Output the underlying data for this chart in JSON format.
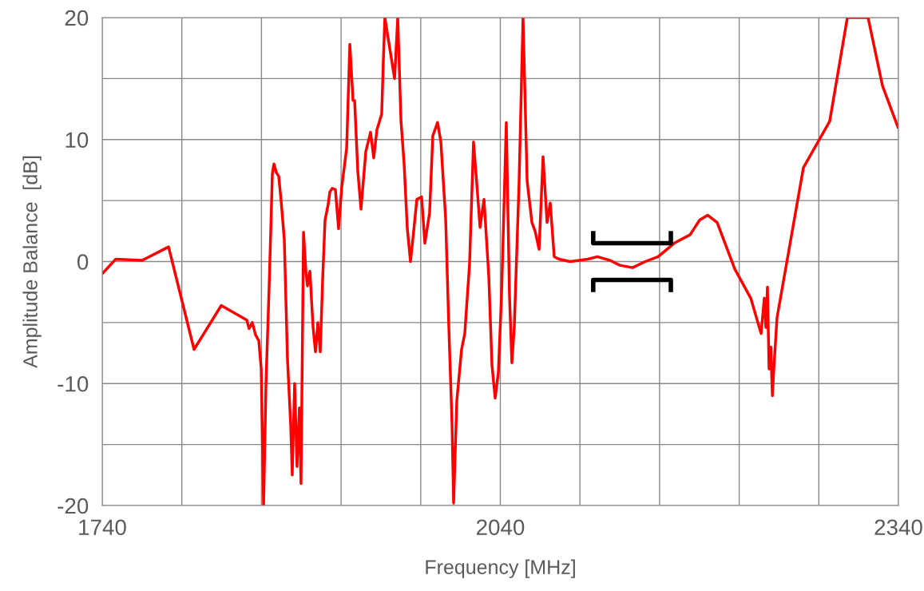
{
  "chart_data": {
    "type": "line",
    "xlabel": "Frequency [MHz]",
    "ylabel": "Amplitude Balance  [dB]",
    "xlim": [
      1740,
      2340
    ],
    "ylim": [
      -20,
      20
    ],
    "xticks": [
      1740,
      {
        "value": 1800,
        "label": null
      },
      {
        "value": 1860,
        "label": null
      },
      {
        "value": 1920,
        "label": null
      },
      {
        "value": 1980,
        "label": null
      },
      2040,
      {
        "value": 2100,
        "label": null
      },
      {
        "value": 2160,
        "label": null
      },
      {
        "value": 2220,
        "label": null
      },
      {
        "value": 2280,
        "label": null
      },
      2340
    ],
    "yticks": [
      -20,
      {
        "value": -15,
        "label": null
      },
      -10,
      {
        "value": -5,
        "label": null
      },
      0,
      {
        "value": 5,
        "label": null
      },
      10,
      {
        "value": 15,
        "label": null
      },
      20
    ],
    "grid": true,
    "legend": false,
    "marker": "none",
    "line_style": "solid",
    "series": [
      {
        "color": "#ff0000",
        "x": [
          1740,
          1750.2,
          1770.1,
          1790.0,
          1809.2,
          1829.7,
          1848.9,
          1850.7,
          1853.1,
          1855.5,
          1858.0,
          1859.8,
          1861.6,
          1863.4,
          1865.8,
          1867.0,
          1868.2,
          1869.4,
          1871.2,
          1873.0,
          1874.8,
          1877.2,
          1879.6,
          1882.0,
          1883.2,
          1885.0,
          1886.8,
          1888.6,
          1889.8,
          1891.7,
          1893.5,
          1894.7,
          1896.5,
          1898.9,
          1900.7,
          1902.5,
          1904.3,
          1906.1,
          1907.9,
          1910.3,
          1911.5,
          1913.3,
          1915.7,
          1918.1,
          1920.5,
          1924.2,
          1926.6,
          1929.0,
          1930.2,
          1932.6,
          1935.0,
          1938.6,
          1942.2,
          1944.6,
          1947.0,
          1950.6,
          1951.8,
          1953.0,
          1960.3,
          1962.7,
          1965.1,
          1967.5,
          1969.9,
          1972.3,
          1974.7,
          1977.1,
          1980.7,
          1983.1,
          1986.7,
          1989.1,
          1992.7,
          1995.2,
          1998.8,
          2001.2,
          2003.6,
          2004.8,
          2007.2,
          2010.8,
          2013.2,
          2016.8,
          2019.8,
          2022.8,
          2024.7,
          2027.7,
          2031.3,
          2033.7,
          2036.1,
          2038.5,
          2040.9,
          2044.5,
          2046.9,
          2048.7,
          2050.5,
          2054.1,
          2057.1,
          2060.2,
          2063.8,
          2066.2,
          2069.2,
          2072.2,
          2075.2,
          2077.6,
          2080.6,
          2084.2,
          2092.6,
          2105.9,
          2113.1,
          2122.7,
          2130.0,
          2139.6,
          2149.2,
          2158.9,
          2171.0,
          2183.0,
          2190.2,
          2196.2,
          2203.4,
          2216.6,
          2228.7,
          2236.5,
          2238.9,
          2240.1,
          2241.3,
          2242.5,
          2243.8,
          2245.0,
          2246.1,
          2248.5,
          2268.4,
          2288.2,
          2301.5,
          2317.1,
          2328.0,
          2340
        ],
        "values": [
          -1.0,
          0.2,
          0.1,
          1.2,
          -7.2,
          -3.6,
          -4.8,
          -5.5,
          -5.0,
          -6.0,
          -6.5,
          -8.8,
          -20,
          -10,
          -2,
          2.5,
          7.2,
          8.0,
          7.3,
          7.0,
          5.0,
          1.8,
          -8.0,
          -13.3,
          -17.5,
          -10,
          -16.8,
          -12,
          -18.2,
          2.4,
          -0.8,
          -2.0,
          -0.8,
          -5.4,
          -7.4,
          -5.0,
          -7.4,
          -1.5,
          3.4,
          4.7,
          5.7,
          6.0,
          5.9,
          2.7,
          6.1,
          9.3,
          17.8,
          13.2,
          13.2,
          7.4,
          4.3,
          9.0,
          10.6,
          8.5,
          10.8,
          12.1,
          16.3,
          20,
          15.0,
          20,
          11.6,
          8.0,
          2.7,
          0,
          2.5,
          5.1,
          5.3,
          1.5,
          4.0,
          10.3,
          11.4,
          9.8,
          3.5,
          -5.4,
          -13.3,
          -19.8,
          -11.4,
          -7.2,
          -5.9,
          -0.2,
          9.8,
          5.6,
          2.8,
          5.1,
          -1.2,
          -8.5,
          -11.2,
          -9.1,
          -2.8,
          11.4,
          -2.8,
          -8.3,
          -5.4,
          6.4,
          20,
          6.6,
          3.2,
          2.5,
          1.0,
          8.6,
          3.2,
          4.8,
          0.4,
          0.2,
          0,
          0.2,
          0.4,
          0.1,
          -0.3,
          -0.5,
          0,
          0.4,
          1.5,
          2.2,
          3.4,
          3.8,
          3.2,
          -0.6,
          -3.0,
          -5.9,
          -3.0,
          -5.4,
          -2.1,
          -8.8,
          -7.0,
          -11.0,
          -8.8,
          -4.6,
          7.7,
          11.5,
          20,
          20,
          14.4,
          10.9
        ]
      },
      {
        "color": "#000000",
        "x": [
          2110,
          2110,
          2168.5,
          2168.5
        ],
        "values": [
          2.5,
          1.5,
          1.5,
          2.5
        ]
      },
      {
        "color": "#000000",
        "x": [
          2110,
          2110,
          2168.5,
          2168.5
        ],
        "values": [
          -2.5,
          -1.5,
          -1.5,
          -2.5
        ]
      }
    ]
  }
}
